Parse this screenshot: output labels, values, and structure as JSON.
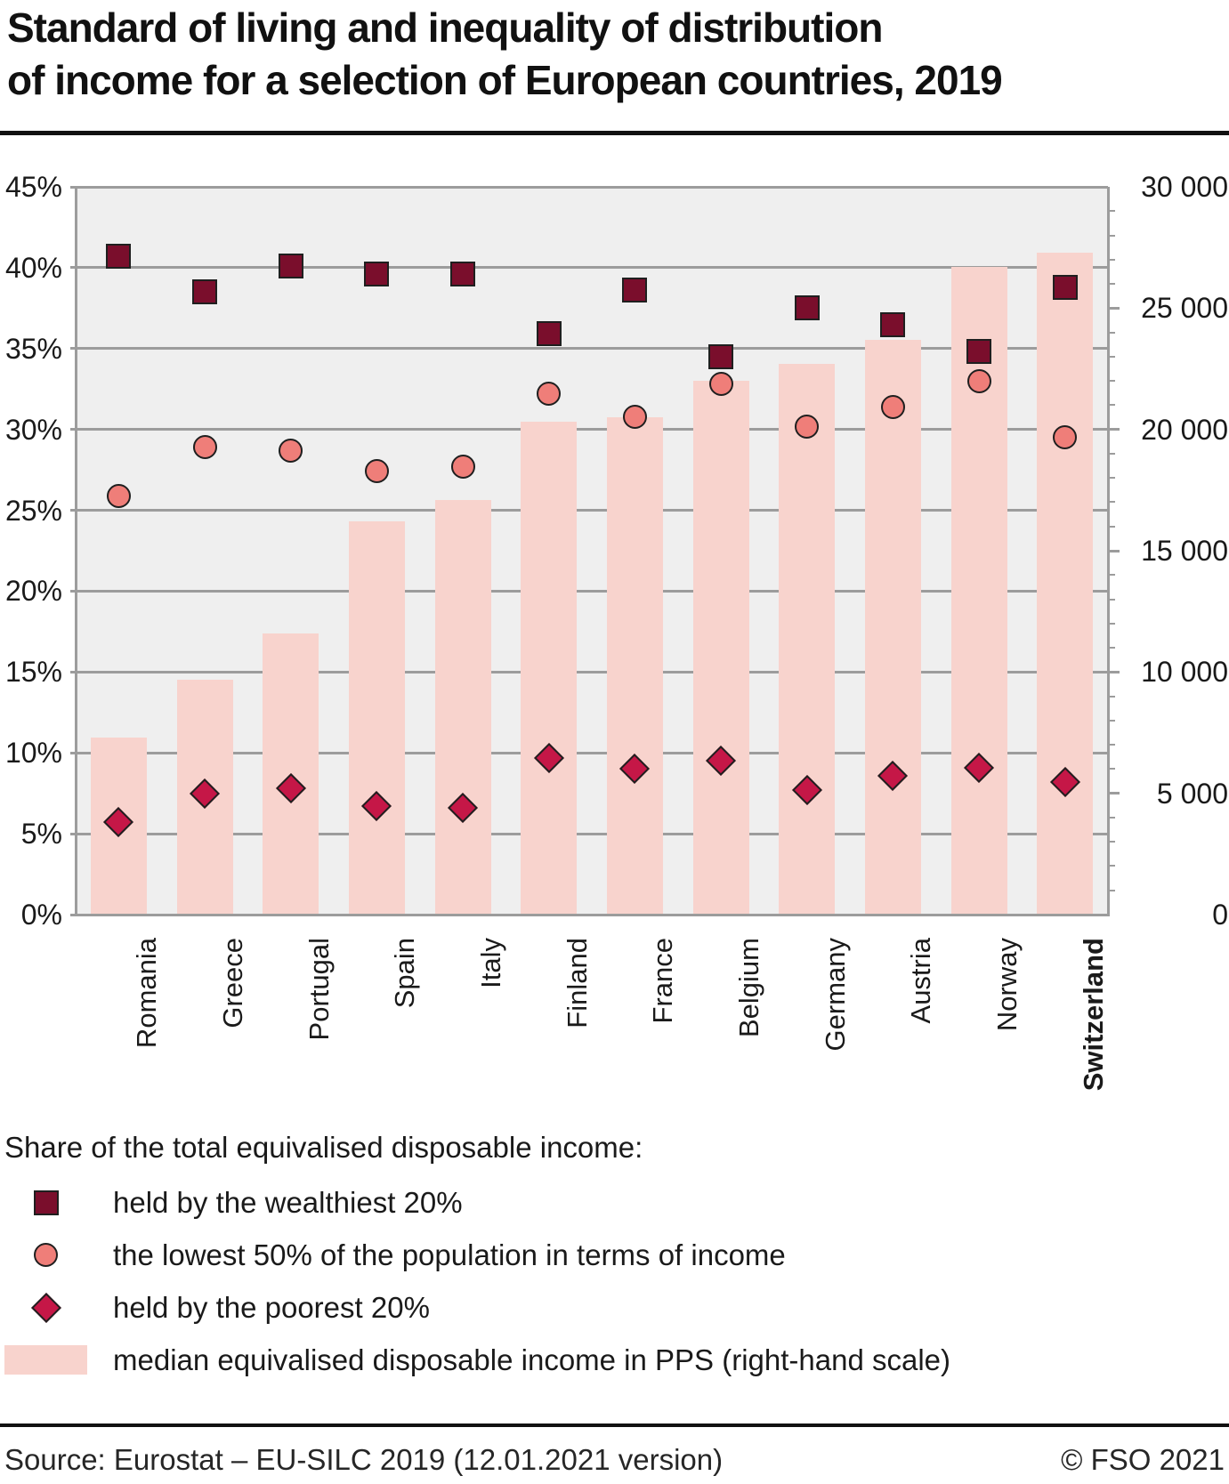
{
  "page": {
    "title_line1": "Standard of living and inequality of distribution",
    "title_line2": "of income for a selection of European countries, 2019"
  },
  "chart_data": {
    "type": "bar",
    "subtype": "combo bar + scatter markers, dual axis",
    "categories": [
      "Romania",
      "Greece",
      "Portugal",
      "Spain",
      "Italy",
      "Finland",
      "France",
      "Belgium",
      "Germany",
      "Austria",
      "Norway",
      "Switzerland"
    ],
    "bold_category": "Switzerland",
    "grid": "horizontal gridlines every 5%",
    "legend_position": "bottom",
    "plot_background": "#efefef",
    "gridline_color": "#9c9c9c",
    "left_axis": {
      "unit": "%",
      "min": 0,
      "max": 45,
      "step": 5,
      "tick_labels": [
        "45%",
        "40%",
        "35%",
        "30%",
        "25%",
        "20%",
        "15%",
        "10%",
        "5%",
        "0%"
      ]
    },
    "right_axis": {
      "unit": "PPS",
      "min": 0,
      "max": 30000,
      "major_step": 5000,
      "minor_step": 1000,
      "tick_labels": [
        "30 000",
        "25 000",
        "20 000",
        "15 000",
        "10 000",
        "5 000",
        "0"
      ]
    },
    "series": [
      {
        "name": "held by the wealthiest 20%",
        "type": "scatter",
        "marker": "square",
        "color": "#7a0e2c",
        "axis": "left",
        "values": [
          40.7,
          38.5,
          40.1,
          39.6,
          39.6,
          35.9,
          38.6,
          34.5,
          37.5,
          36.5,
          34.8,
          38.8
        ]
      },
      {
        "name": "the lowest 50% of the population in terms of income",
        "type": "scatter",
        "marker": "circle",
        "color": "#ef7e79",
        "axis": "left",
        "values": [
          25.9,
          28.9,
          28.7,
          27.4,
          27.7,
          32.2,
          30.8,
          32.8,
          30.2,
          31.4,
          33.0,
          29.5
        ]
      },
      {
        "name": "held by the poorest 20%",
        "type": "scatter",
        "marker": "diamond",
        "color": "#c51747",
        "axis": "left",
        "values": [
          5.7,
          7.5,
          7.8,
          6.7,
          6.6,
          9.7,
          9.0,
          9.5,
          7.7,
          8.6,
          9.1,
          8.2
        ]
      },
      {
        "name": "median equivalised disposable income in PPS (right-hand scale)",
        "type": "bar",
        "marker": "bar",
        "color": "#f8d3cd",
        "axis": "right",
        "values": [
          7300,
          9700,
          11600,
          16200,
          17100,
          20300,
          20500,
          22000,
          22700,
          23700,
          26700,
          27300
        ]
      }
    ]
  },
  "legend": {
    "heading": "Share of the total equivalised disposable income:"
  },
  "footer": {
    "source": "Source: Eurostat – EU-SILC 2019 (12.01.2021 version)",
    "copyright": "© FSO 2021"
  }
}
